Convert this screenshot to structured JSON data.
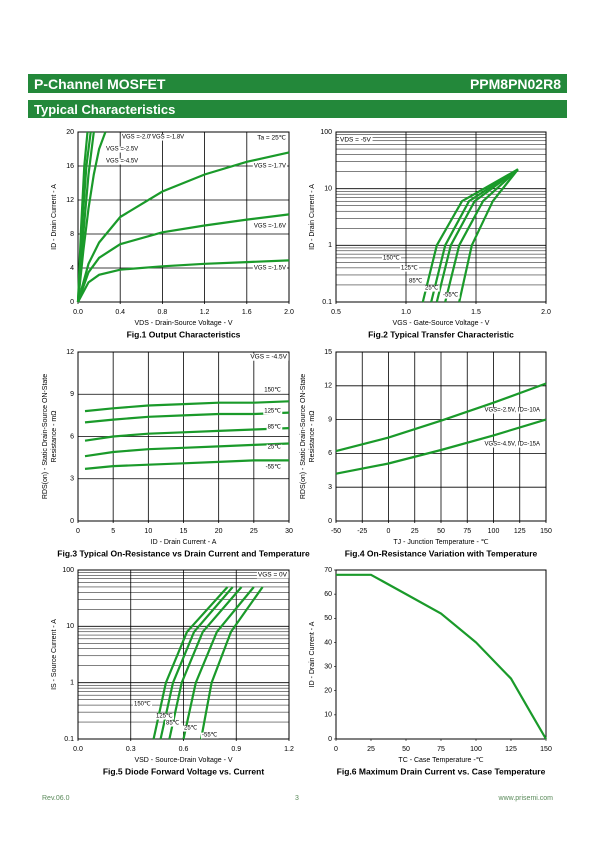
{
  "header": {
    "category": "P-Channel MOSFET",
    "part": "PPM8PN02R8",
    "section": "Typical Characteristics"
  },
  "chart_data": [
    {
      "type": "line",
      "title": "Fig.1 Output Characteristics",
      "xlabel": "VDS - Drain-Source Voltage - V",
      "ylabel": [
        "ID - Drain Current - A"
      ],
      "xlim": [
        0,
        2
      ],
      "xticks": [
        {
          "value": 0,
          "label": "0.0"
        },
        0.4,
        0.8,
        1.2,
        1.6,
        {
          "value": 2,
          "label": "2.0"
        }
      ],
      "ylim": [
        0,
        20
      ],
      "yticks": [
        0,
        4,
        8,
        12,
        16,
        20
      ],
      "grid": true,
      "color": "#1a9a2a",
      "annotations": [
        "Ta = 25℃"
      ],
      "series": [
        {
          "name": "VGS =-2.0V",
          "x": [
            0,
            0.05,
            0.1,
            0.15
          ],
          "values": [
            0,
            8,
            15,
            20
          ]
        },
        {
          "name": "VGS =-1.8V",
          "x": [
            0,
            0.05,
            0.1,
            0.15,
            0.2,
            0.26
          ],
          "values": [
            0,
            6,
            11,
            15,
            18,
            20
          ]
        },
        {
          "name": "VGS =-2.5V",
          "x": [
            0,
            0.04,
            0.08,
            0.12
          ],
          "values": [
            0,
            9,
            16,
            20
          ]
        },
        {
          "name": "VGS =-4.5V",
          "x": [
            0,
            0.03,
            0.06,
            0.09
          ],
          "values": [
            0,
            9,
            16,
            20
          ]
        },
        {
          "name": "VGS =-1.7V",
          "x": [
            0,
            0.1,
            0.2,
            0.4,
            0.8,
            1.2,
            1.6,
            2.0
          ],
          "values": [
            0,
            4.5,
            7,
            10,
            13,
            15,
            16.5,
            17.6
          ]
        },
        {
          "name": "VGS =-1.6V",
          "x": [
            0,
            0.1,
            0.2,
            0.4,
            0.8,
            1.2,
            1.6,
            2.0
          ],
          "values": [
            0,
            3.5,
            5.2,
            6.8,
            8.2,
            9,
            9.7,
            10.3
          ]
        },
        {
          "name": "VGS =-1.5V",
          "x": [
            0,
            0.1,
            0.2,
            0.4,
            0.8,
            1.2,
            1.6,
            2.0
          ],
          "values": [
            0,
            2.3,
            3.2,
            3.8,
            4.2,
            4.5,
            4.7,
            4.9
          ]
        }
      ]
    },
    {
      "type": "line",
      "title": "Fig.2 Typical Transfer Characteristic",
      "xlabel": "VGS - Gate-Source Voltage - V",
      "ylabel": [
        "ID - Drain Current - A"
      ],
      "xlim": [
        0.5,
        2
      ],
      "xticks": [
        0.5,
        {
          "value": 1,
          "label": "1.0"
        },
        1.5,
        {
          "value": 2,
          "label": "2.0"
        }
      ],
      "ylim": [
        0.1,
        100
      ],
      "yticks": [
        0.1,
        1,
        10,
        100
      ],
      "log_y": true,
      "grid": true,
      "color": "#1a9a2a",
      "annotations": [
        "VDS = -5V"
      ],
      "series": [
        {
          "name": "150℃",
          "x": [
            1.12,
            1.22,
            1.4,
            1.8
          ],
          "values": [
            0.1,
            1,
            6,
            22
          ]
        },
        {
          "name": "125℃",
          "x": [
            1.18,
            1.28,
            1.45,
            1.8
          ],
          "values": [
            0.1,
            1,
            6,
            22
          ]
        },
        {
          "name": "85℃",
          "x": [
            1.22,
            1.32,
            1.49,
            1.8
          ],
          "values": [
            0.1,
            1,
            6,
            22
          ]
        },
        {
          "name": "25℃",
          "x": [
            1.28,
            1.38,
            1.55,
            1.8
          ],
          "values": [
            0.1,
            1,
            6,
            22
          ]
        },
        {
          "name": "-55℃",
          "x": [
            1.38,
            1.47,
            1.62,
            1.8
          ],
          "values": [
            0.1,
            1,
            6,
            22
          ]
        }
      ]
    },
    {
      "type": "line",
      "title": "Fig.3 Typical On-Resistance  vs Drain Current and Temperature",
      "xlabel": "ID - Drain Current - A",
      "ylabel": [
        "RDS(on) - Static Drain-Source ON-State",
        "Resistance - mΩ"
      ],
      "xlim": [
        0,
        30
      ],
      "xticks": [
        0,
        5,
        10,
        15,
        20,
        25,
        30
      ],
      "ylim": [
        0,
        12
      ],
      "yticks": [
        0,
        3,
        6,
        9,
        12
      ],
      "grid": true,
      "color": "#1a9a2a",
      "annotations": [
        "VGS = -4.5V"
      ],
      "series": [
        {
          "name": "150℃",
          "x": [
            1,
            5,
            10,
            15,
            20,
            25,
            30
          ],
          "values": [
            7.8,
            8.0,
            8.2,
            8.3,
            8.4,
            8.4,
            8.5
          ]
        },
        {
          "name": "125℃",
          "x": [
            1,
            5,
            10,
            15,
            20,
            25,
            30
          ],
          "values": [
            7.0,
            7.2,
            7.4,
            7.5,
            7.6,
            7.6,
            7.7
          ]
        },
        {
          "name": "85℃",
          "x": [
            1,
            5,
            10,
            15,
            20,
            25,
            30
          ],
          "values": [
            5.7,
            6.0,
            6.2,
            6.3,
            6.4,
            6.5,
            6.6
          ]
        },
        {
          "name": "25℃",
          "x": [
            1,
            5,
            10,
            15,
            20,
            25,
            30
          ],
          "values": [
            4.6,
            4.9,
            5.1,
            5.2,
            5.3,
            5.4,
            5.5
          ]
        },
        {
          "name": "-55℃",
          "x": [
            1,
            5,
            10,
            15,
            20,
            25,
            30
          ],
          "values": [
            3.7,
            3.9,
            4.0,
            4.1,
            4.2,
            4.3,
            4.3
          ]
        }
      ]
    },
    {
      "type": "line",
      "title": "Fig.4 On-Resistance Variation with Temperature",
      "xlabel": "TJ - Junction Temperature - ℃",
      "ylabel": [
        "RDS(on) - Static Drain-Source ON-State",
        "Resistance - mΩ"
      ],
      "xlim": [
        -50,
        150
      ],
      "xticks": [
        -50,
        -25,
        0,
        25,
        50,
        75,
        100,
        125,
        150
      ],
      "ylim": [
        0,
        15
      ],
      "yticks": [
        0,
        3,
        6,
        9,
        12,
        15
      ],
      "grid": true,
      "color": "#1a9a2a",
      "series": [
        {
          "name": "VGS=-2.5V, ID=-10A",
          "x": [
            -50,
            0,
            50,
            100,
            150
          ],
          "values": [
            6.2,
            7.4,
            8.9,
            10.5,
            12.2
          ]
        },
        {
          "name": "VGS=-4.5V, ID=-15A",
          "x": [
            -50,
            0,
            50,
            100,
            150
          ],
          "values": [
            4.2,
            5.1,
            6.3,
            7.6,
            9.0
          ]
        }
      ]
    },
    {
      "type": "line",
      "title": "Fig.5 Diode Forward Voltage vs. Current",
      "xlabel": "VSD - Source-Drain Voltage - V",
      "ylabel": [
        "IS - Source Current - A"
      ],
      "xlim": [
        0,
        1.2
      ],
      "xticks": [
        {
          "value": 0,
          "label": "0.0"
        },
        0.3,
        0.6,
        0.9,
        1.2
      ],
      "ylim": [
        0.1,
        100
      ],
      "yticks": [
        0.1,
        1,
        10,
        100
      ],
      "log_y": true,
      "grid": true,
      "color": "#1a9a2a",
      "annotations": [
        "VGS = 0V"
      ],
      "series": [
        {
          "name": "150℃",
          "x": [
            0.43,
            0.5,
            0.62,
            0.85
          ],
          "values": [
            0.1,
            1,
            8,
            50
          ]
        },
        {
          "name": "125℃",
          "x": [
            0.47,
            0.54,
            0.66,
            0.88
          ],
          "values": [
            0.1,
            1,
            8,
            50
          ]
        },
        {
          "name": "85℃",
          "x": [
            0.52,
            0.59,
            0.71,
            0.93
          ],
          "values": [
            0.1,
            1,
            8,
            50
          ]
        },
        {
          "name": "25℃",
          "x": [
            0.6,
            0.67,
            0.79,
            1.0
          ],
          "values": [
            0.1,
            1,
            8,
            50
          ]
        },
        {
          "name": "-55℃",
          "x": [
            0.7,
            0.76,
            0.87,
            1.05
          ],
          "values": [
            0.1,
            1,
            8,
            50
          ]
        }
      ]
    },
    {
      "type": "line",
      "title": "Fig.6 Maximum Drain Current vs. Case Temperature",
      "xlabel": "TC - Case Temperature -℃",
      "ylabel": [
        "ID - Drain Current - A"
      ],
      "xlim": [
        0,
        150
      ],
      "xticks": [
        0,
        25,
        50,
        75,
        100,
        125,
        150
      ],
      "ylim": [
        0,
        70
      ],
      "yticks": [
        0,
        10,
        20,
        30,
        40,
        50,
        60,
        70
      ],
      "grid": false,
      "color": "#1a9a2a",
      "series": [
        {
          "name": null,
          "x": [
            0,
            25,
            50,
            75,
            100,
            125,
            140,
            150
          ],
          "values": [
            68,
            68,
            60,
            52,
            40,
            25,
            10,
            0
          ]
        }
      ]
    }
  ],
  "footer": {
    "revision": "Rev.06.0",
    "page": "3",
    "website": "www.prisemi.com"
  }
}
